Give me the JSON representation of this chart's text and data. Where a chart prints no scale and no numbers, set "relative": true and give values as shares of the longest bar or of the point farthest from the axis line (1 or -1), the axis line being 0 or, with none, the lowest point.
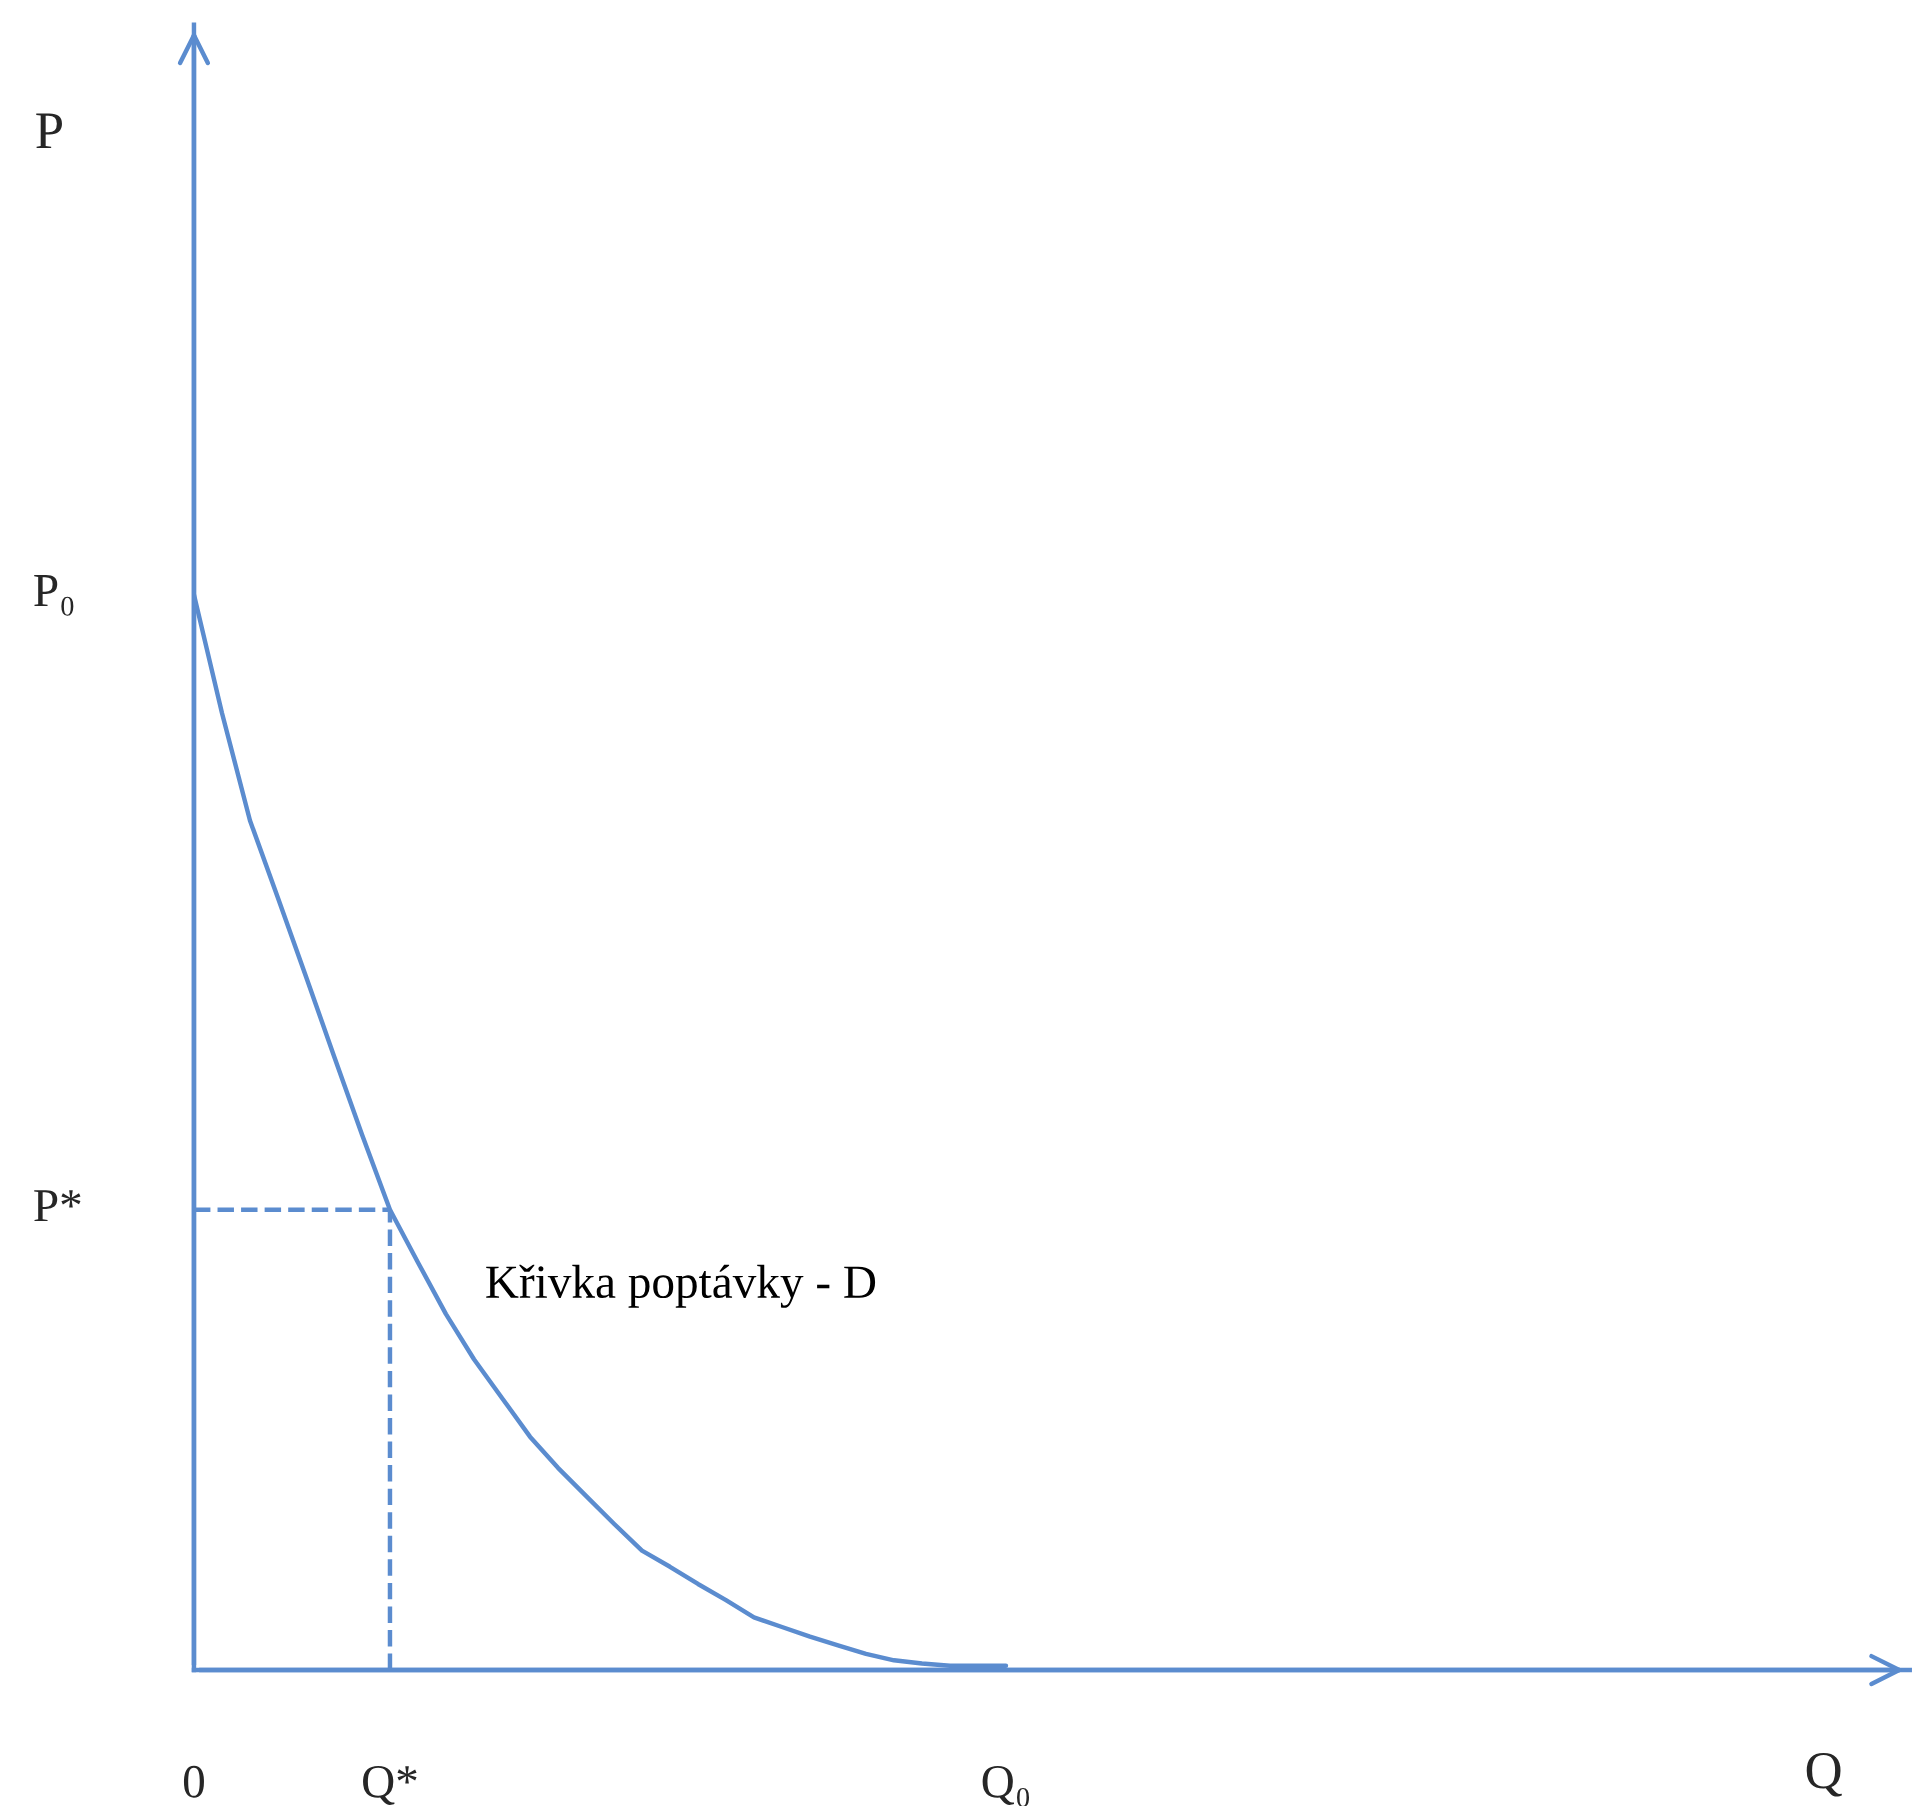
{
  "chart_data": {
    "type": "line",
    "relative": true,
    "categories": [
      "0",
      null,
      null,
      null,
      null,
      null,
      null,
      "Q*",
      null,
      null,
      null,
      null,
      null,
      null,
      null,
      null,
      null,
      null,
      null,
      null,
      null,
      null,
      null,
      null,
      null,
      null,
      null,
      null,
      null,
      "Q₀"
    ],
    "annotations": [
      "P₀",
      "P*",
      "P",
      "Q"
    ],
    "ref_lines": [
      {
        "axis": "x",
        "value": "Q*",
        "color": "#5b8ccf",
        "line_style": "dashed"
      }
    ],
    "series": [
      {
        "name": "Křivka poptávky - D",
        "color": "#5b8ccf",
        "line_style": "solid",
        "values": [
          1,
          0.89,
          0.79,
          0.718,
          0.645,
          0.571,
          0.498,
          0.428,
          0.379,
          0.331,
          0.289,
          0.253,
          0.217,
          0.188,
          0.162,
          0.136,
          0.111,
          0.096,
          0.08,
          0.065,
          0.049,
          0.04,
          0.031,
          0.023,
          0.015,
          0.009,
          0.006,
          0.004,
          0.004,
          0.004
        ]
      },
      {
        "color": "#5b8ccf",
        "line_style": "dashed",
        "values": [
          0.428,
          0.428,
          0.428,
          0.428,
          0.428,
          0.428,
          0.428,
          0.428,
          null,
          null,
          null,
          null,
          null,
          null,
          null,
          null,
          null,
          null,
          null,
          null,
          null,
          null,
          null,
          null,
          null,
          null,
          null,
          null,
          null,
          null
        ]
      }
    ]
  }
}
